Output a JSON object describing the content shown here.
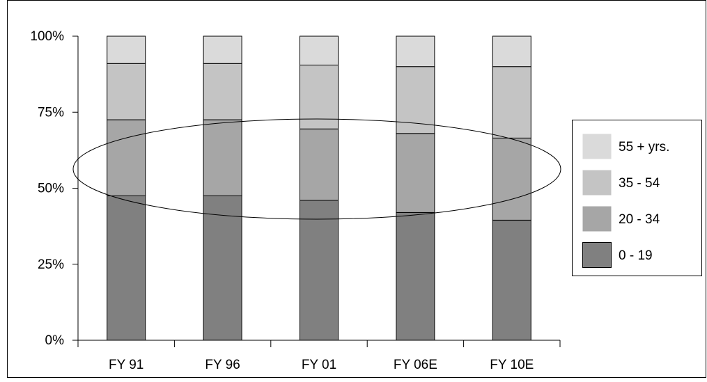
{
  "chart_data": {
    "type": "bar",
    "stacked": true,
    "percent_scale": true,
    "categories": [
      "FY 91",
      "FY 96",
      "FY 01",
      "FY 06E",
      "FY 10E"
    ],
    "series": [
      {
        "name": "0 - 19",
        "color": "#808080",
        "values": [
          47.5,
          47.5,
          46,
          42,
          39.5
        ]
      },
      {
        "name": "20 - 34",
        "color": "#a6a6a6",
        "values": [
          25,
          25,
          23.5,
          26,
          27
        ]
      },
      {
        "name": "35 - 54",
        "color": "#c4c4c4",
        "values": [
          18.5,
          18.5,
          21,
          22,
          23.5
        ]
      },
      {
        "name": "55 + yrs.",
        "color": "#dadada",
        "values": [
          9,
          9,
          9.5,
          10,
          10
        ]
      }
    ],
    "yticks": [
      "0%",
      "25%",
      "50%",
      "75%",
      "100%"
    ],
    "ylim": [
      0,
      100
    ],
    "grid": false,
    "legend_position": "right",
    "legend_order": [
      "55 + yrs.",
      "35 - 54",
      "20 - 34",
      "0 - 19"
    ],
    "annotation": "ellipse highlighting the 20 - 34 segment"
  }
}
